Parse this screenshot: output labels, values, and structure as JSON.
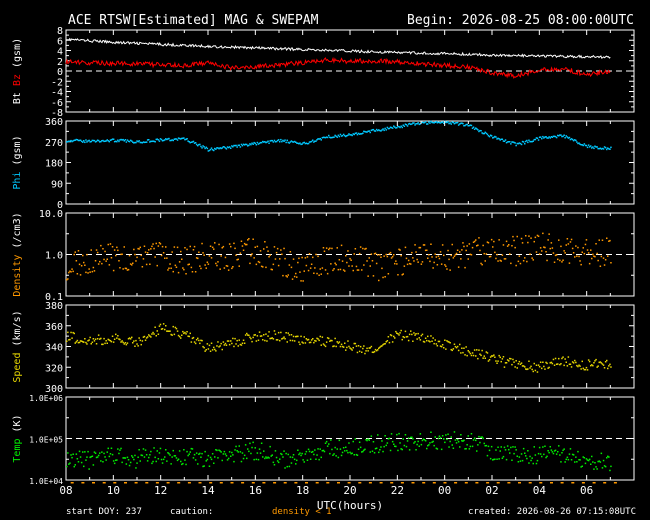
{
  "header": {
    "title": "ACE RTSW[Estimated] MAG & SWEPAM",
    "begin": "Begin: 2026-08-25 08:00:00UTC"
  },
  "footer": {
    "start_doy": "start DOY: 237",
    "caution_label": "caution:",
    "caution_value": "density < 1",
    "created": "created: 2026-08-26 07:15:08UTC"
  },
  "colors": {
    "background": "#000000",
    "axes": "#ffffff",
    "bt": "#ffffff",
    "bz": "#ff0000",
    "phi": "#00c8ff",
    "density": "#ff9900",
    "speed": "#e6d600",
    "temp": "#00ee00"
  },
  "chart_data": [
    {
      "type": "line",
      "ylabel": "Bt Bz (gsm)",
      "ylabel_parts": [
        "Bt",
        "Bz",
        "(gsm)"
      ],
      "ylim": [
        -8,
        8
      ],
      "yticks": [
        "8",
        "6",
        "4",
        "2",
        "0",
        "-2",
        "-4",
        "-6",
        "-8"
      ],
      "dashed_reference": 0,
      "series": [
        {
          "name": "Bt",
          "x": [
            0,
            2,
            4,
            6,
            8,
            10,
            12,
            14,
            16,
            18,
            20,
            22,
            23
          ],
          "values": [
            6.2,
            5.6,
            5.2,
            4.8,
            4.5,
            4.2,
            3.9,
            3.6,
            3.4,
            3.1,
            2.9,
            2.8,
            2.7
          ]
        },
        {
          "name": "Bz",
          "x": [
            0,
            1,
            2,
            3,
            4,
            5,
            6,
            7,
            8,
            9,
            10,
            11,
            12,
            13,
            14,
            15,
            16,
            17,
            18,
            19,
            20,
            21,
            22,
            23
          ],
          "values": [
            1.8,
            1.6,
            1.5,
            1.4,
            1.2,
            1.0,
            1.6,
            0.6,
            0.9,
            1.2,
            1.6,
            2.2,
            1.9,
            2.0,
            1.8,
            1.4,
            1.1,
            0.8,
            -0.3,
            -1.0,
            0.2,
            0.5,
            -0.7,
            0.0
          ]
        }
      ]
    },
    {
      "type": "scatter",
      "ylabel": "Phi (gsm)",
      "ylim": [
        0,
        360
      ],
      "yticks": [
        "360",
        "270",
        "180",
        "90",
        "0"
      ],
      "series": [
        {
          "name": "Phi",
          "x": [
            0,
            1,
            2,
            3,
            4,
            5,
            6,
            7,
            8,
            9,
            10,
            11,
            12,
            13,
            14,
            15,
            16,
            17,
            18,
            19,
            20,
            21,
            22,
            23
          ],
          "values": [
            275,
            272,
            276,
            270,
            278,
            282,
            235,
            248,
            262,
            275,
            260,
            292,
            300,
            318,
            335,
            352,
            355,
            342,
            290,
            258,
            285,
            295,
            250,
            240
          ]
        }
      ]
    },
    {
      "type": "scatter",
      "ylabel": "Density (/cm3)",
      "scale": "log",
      "ylim": [
        0.1,
        10.0
      ],
      "yticks": [
        "10.0",
        "1.0",
        "0.1"
      ],
      "dashed_reference": 1.0,
      "series": [
        {
          "name": "Density",
          "x": [
            0,
            1,
            2,
            3,
            4,
            5,
            6,
            7,
            8,
            9,
            10,
            11,
            12,
            13,
            14,
            15,
            16,
            17,
            18,
            19,
            20,
            21,
            22,
            23
          ],
          "values": [
            0.55,
            0.75,
            0.9,
            0.75,
            0.95,
            0.7,
            0.9,
            0.85,
            1.2,
            0.7,
            0.45,
            0.75,
            0.9,
            0.5,
            0.65,
            0.95,
            0.75,
            0.9,
            1.5,
            1.2,
            1.6,
            1.3,
            1.1,
            1.2
          ]
        }
      ]
    },
    {
      "type": "scatter",
      "ylabel": "Speed (km/s)",
      "ylim": [
        300,
        380
      ],
      "yticks": [
        "380",
        "360",
        "340",
        "320",
        "300"
      ],
      "series": [
        {
          "name": "Speed",
          "x": [
            0,
            1,
            2,
            3,
            4,
            5,
            6,
            7,
            8,
            9,
            10,
            11,
            12,
            13,
            14,
            15,
            16,
            17,
            18,
            19,
            20,
            21,
            22,
            23
          ],
          "values": [
            350,
            345,
            348,
            343,
            358,
            352,
            338,
            344,
            350,
            350,
            346,
            345,
            340,
            335,
            352,
            348,
            342,
            335,
            328,
            322,
            320,
            326,
            322,
            323
          ]
        }
      ]
    },
    {
      "type": "scatter",
      "ylabel": "Temp (K)",
      "scale": "log",
      "ylim": [
        10000,
        1000000
      ],
      "yticks": [
        "1.0E+06",
        "1.0E+05",
        "1.0E+04"
      ],
      "dashed_reference": 100000,
      "series": [
        {
          "name": "Temp",
          "x": [
            0,
            1,
            2,
            3,
            4,
            5,
            6,
            7,
            8,
            9,
            10,
            11,
            12,
            13,
            14,
            15,
            16,
            17,
            18,
            19,
            20,
            21,
            22,
            23
          ],
          "values": [
            35000,
            30000,
            38000,
            32000,
            40000,
            36000,
            33000,
            38000,
            52000,
            30000,
            35000,
            55000,
            60000,
            72000,
            85000,
            90000,
            85000,
            92000,
            48000,
            38000,
            42000,
            45000,
            30000,
            25000
          ]
        }
      ]
    }
  ],
  "xaxis": {
    "label": "UTC(hours)",
    "ticks": [
      "08",
      "10",
      "12",
      "14",
      "16",
      "18",
      "20",
      "22",
      "00",
      "02",
      "04",
      "06"
    ]
  }
}
